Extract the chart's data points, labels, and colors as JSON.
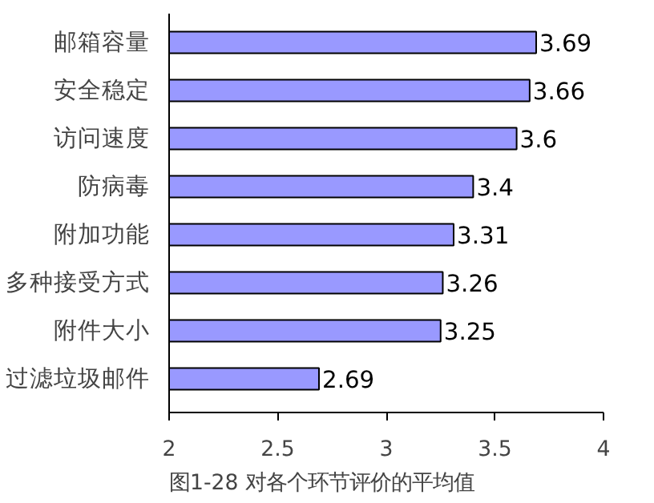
{
  "chart_data": {
    "type": "bar",
    "orientation": "horizontal",
    "title": "图1-28    对各个环节评价的平均值",
    "categories": [
      "邮箱容量",
      "安全稳定",
      "访问速度",
      "防病毒",
      "附加功能",
      "多种接受方式",
      "附件大小",
      "过滤垃圾邮件"
    ],
    "values": [
      3.69,
      3.66,
      3.6,
      3.4,
      3.31,
      3.26,
      3.25,
      2.69
    ],
    "color": "#9999ff",
    "xlim": [
      2,
      4
    ],
    "xticks": [
      2,
      2.5,
      3,
      3.5,
      4
    ],
    "grid": false,
    "data_labels": true
  }
}
